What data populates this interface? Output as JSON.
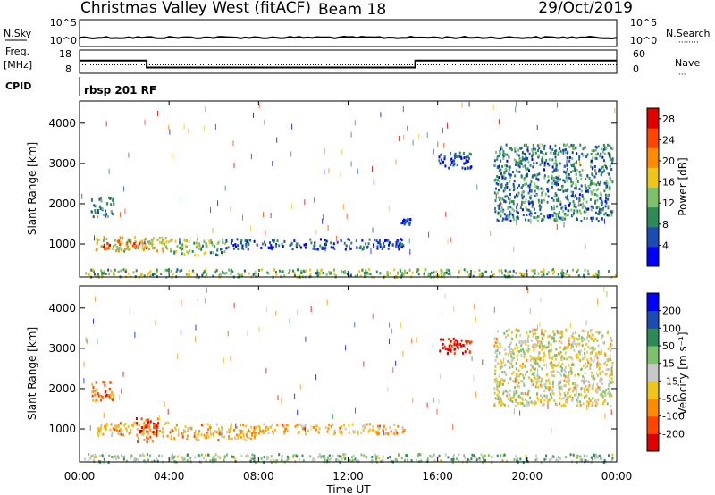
{
  "header": {
    "title": "Christmas Valley West (fitACF)",
    "beam": "Beam 18",
    "date": "29/Oct/2019"
  },
  "strips": {
    "nsky_label": "N.Sky",
    "nsearch_label": "N.Search",
    "nsearch_dots": "·········",
    "left_ticks": [
      "10^5",
      "10^0"
    ],
    "right_ticks": [
      "10^5",
      "10^0"
    ],
    "freq_label": "Freq.",
    "freq_unit": "[MHz]",
    "freq_ticks": [
      "18",
      "8"
    ],
    "nave_label": "Nave",
    "nave_dots": "····",
    "nave_ticks": [
      "60",
      "0"
    ],
    "cpid_label": "CPID",
    "cpid_value": "rbsp 201 RF",
    "freq_data": {
      "high": 13.5,
      "low": 10.5,
      "switch_hours": [
        3.0,
        15.0
      ]
    },
    "nave_data": {
      "level": 22
    }
  },
  "time_axis": {
    "label": "Time UT",
    "ticks": [
      "00:00",
      "04:00",
      "08:00",
      "12:00",
      "16:00",
      "20:00",
      "00:00"
    ],
    "range_hours": [
      0,
      24
    ]
  },
  "chart_data": [
    {
      "type": "heatmap",
      "title": "",
      "xlabel": "Time UT",
      "ylabel": "Slant Range [km]",
      "y_ticks": [
        "1000",
        "2000",
        "3000",
        "4000"
      ],
      "ylim": [
        180,
        4550
      ],
      "colorbar": {
        "label": "Power [dB]",
        "ticks": [
          "4",
          "8",
          "12",
          "16",
          "20",
          "24",
          "28"
        ],
        "range": [
          0,
          30
        ],
        "colors": [
          "#0000ff",
          "#1a4cb4",
          "#2e8b57",
          "#7cc26a",
          "#f0c419",
          "#ff8c00",
          "#ff4500",
          "#e00000"
        ]
      },
      "regions": [
        {
          "t": [
            0.2,
            24
          ],
          "r": [
            200,
            400
          ],
          "level": 3
        },
        {
          "t": [
            0.5,
            1.5
          ],
          "r": [
            1700,
            2200
          ],
          "level": 2
        },
        {
          "t": [
            0.7,
            4.0
          ],
          "r": [
            850,
            1200
          ],
          "level": 4
        },
        {
          "t": [
            1.0,
            3.0
          ],
          "r": [
            900,
            1100
          ],
          "level": 6
        },
        {
          "t": [
            4.0,
            6.5
          ],
          "r": [
            750,
            1150
          ],
          "level": 3
        },
        {
          "t": [
            6.5,
            14.5
          ],
          "r": [
            900,
            1150
          ],
          "level": 1
        },
        {
          "t": [
            14.3,
            14.8
          ],
          "r": [
            1500,
            1650
          ],
          "level": 1
        },
        {
          "t": [
            16.0,
            17.5
          ],
          "r": [
            2900,
            3300
          ],
          "level": 1
        },
        {
          "t": [
            18.5,
            23.8
          ],
          "r": [
            1600,
            3500
          ],
          "level": 2
        }
      ]
    },
    {
      "type": "heatmap",
      "title": "",
      "xlabel": "Time UT",
      "ylabel": "Slant Range [km]",
      "y_ticks": [
        "1000",
        "2000",
        "3000",
        "4000"
      ],
      "ylim": [
        180,
        4550
      ],
      "colorbar": {
        "label": "Velocity [m s⁻¹]",
        "ticks": [
          "200",
          "100",
          "50",
          "15",
          "-15",
          "-50",
          "-100",
          "-200"
        ],
        "range": [
          -250,
          250
        ],
        "colors": [
          "#e00000",
          "#ff4500",
          "#ff8c00",
          "#f0c419",
          "#c8c8c8",
          "#7cc26a",
          "#2e8b57",
          "#1a4cb4",
          "#0000ff"
        ]
      },
      "regions": [
        {
          "t": [
            0.2,
            24
          ],
          "r": [
            200,
            400
          ],
          "level": 5
        },
        {
          "t": [
            0.5,
            1.5
          ],
          "r": [
            1700,
            2200
          ],
          "level": 2
        },
        {
          "t": [
            0.7,
            4.0
          ],
          "r": [
            850,
            1200
          ],
          "level": 3
        },
        {
          "t": [
            2.5,
            3.5
          ],
          "r": [
            700,
            1300
          ],
          "level": 1
        },
        {
          "t": [
            4.0,
            8.0
          ],
          "r": [
            750,
            1150
          ],
          "level": 3
        },
        {
          "t": [
            8.0,
            14.5
          ],
          "r": [
            900,
            1150
          ],
          "level": 3
        },
        {
          "t": [
            16.0,
            17.5
          ],
          "r": [
            2900,
            3300
          ],
          "level": 0
        },
        {
          "t": [
            18.5,
            23.8
          ],
          "r": [
            1600,
            3500
          ],
          "level": 4
        }
      ]
    }
  ]
}
